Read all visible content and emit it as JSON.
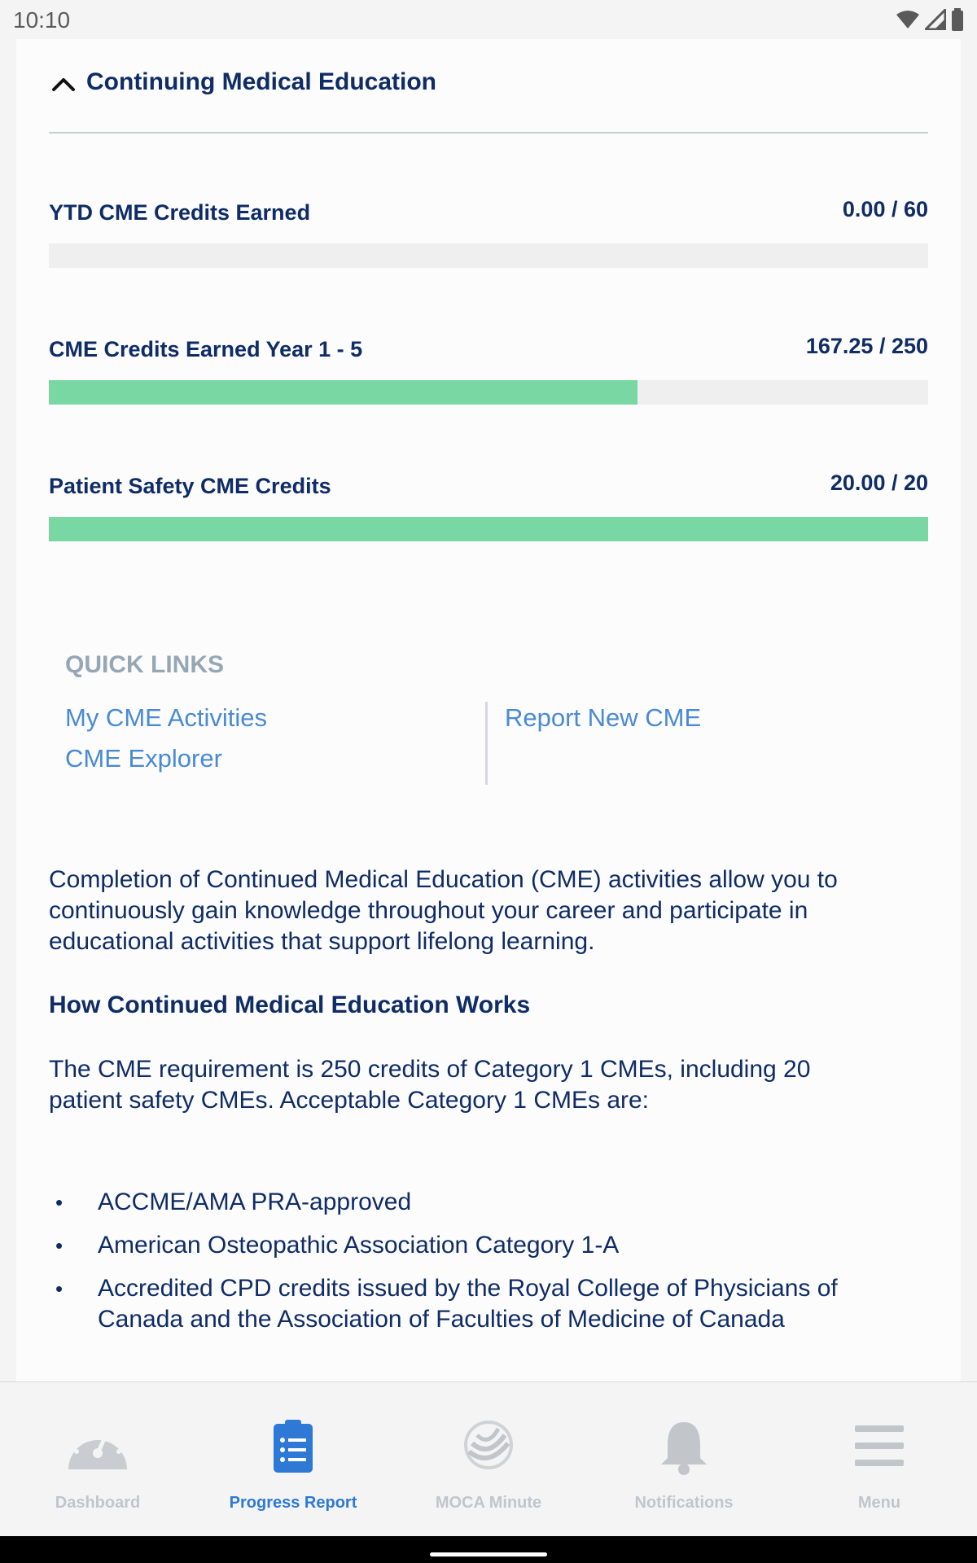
{
  "status_bar": {
    "time": "10:10"
  },
  "section": {
    "title": "Continuing Medical Education"
  },
  "metrics": [
    {
      "label": "YTD CME Credits Earned",
      "value": "0.00 / 60",
      "progress": 0.0
    },
    {
      "label": "CME Credits Earned Year 1 - 5",
      "value": "167.25 / 250",
      "progress": 0.669
    },
    {
      "label": "Patient Safety CME Credits",
      "value": "20.00 / 20",
      "progress": 1.0
    }
  ],
  "quick_links": {
    "title": "QUICK LINKS",
    "links": [
      "My CME Activities",
      "CME Explorer",
      "Report New CME"
    ]
  },
  "intro_text": "Completion of Continued Medical Education (CME) activities allow you to continuously gain knowledge throughout your career and participate in educational activities that support lifelong learning.",
  "how_heading": "How Continued Medical Education Works",
  "requirement_text": "The CME requirement is 250 credits of Category 1 CMEs, including 20 patient safety CMEs. Acceptable Category 1 CMEs are:",
  "acceptable": [
    "ACCME/AMA PRA-approved",
    "American Osteopathic Association Category 1-A",
    "Accredited CPD credits issued by the Royal College of Physicians of Canada and the Association of Faculties of Medicine of Canada"
  ],
  "tabs": [
    {
      "label": "Dashboard",
      "icon": "gauge-icon",
      "active": false
    },
    {
      "label": "Progress Report",
      "icon": "clipboard-list-icon",
      "active": true
    },
    {
      "label": "MOCA Minute",
      "icon": "moca-logo-icon",
      "active": false
    },
    {
      "label": "Notifications",
      "icon": "bell-icon",
      "active": false
    },
    {
      "label": "Menu",
      "icon": "hamburger-icon",
      "active": false
    }
  ],
  "colors": {
    "primary_text": "#0f2c66",
    "link": "#4a8ad3",
    "progress_fill": "#79d7a4",
    "progress_track": "#efefef",
    "tab_active": "#2e78d6",
    "tab_inactive": "#c2c5c9"
  }
}
